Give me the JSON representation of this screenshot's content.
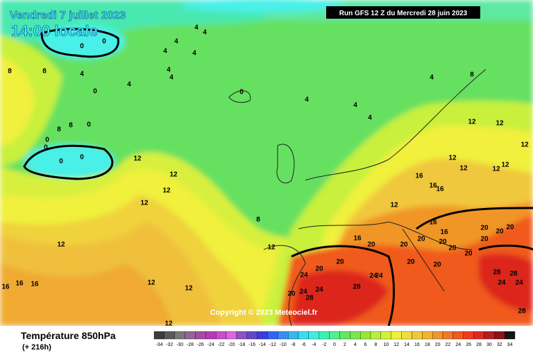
{
  "header": {
    "date": "Vendredi 7 juillet 2023",
    "time": "14:00 locale",
    "run": "Run GFS 12 Z du Mercredi 28 juin 2023"
  },
  "footer": {
    "variable": "Température 850hPa",
    "lead": "(+ 216h)",
    "copyright": "Copyright © 2023 Meteociel.fr"
  },
  "scale": {
    "labels": [
      -34,
      -32,
      -30,
      -28,
      -26,
      -24,
      -22,
      -20,
      -18,
      -16,
      -14,
      -12,
      -10,
      -8,
      -6,
      -4,
      -2,
      0,
      2,
      4,
      6,
      8,
      10,
      12,
      14,
      16,
      18,
      20,
      22,
      24,
      26,
      28,
      30,
      32,
      34
    ],
    "colors": [
      "#3c3c3c",
      "#5a5a5a",
      "#787878",
      "#966496",
      "#a050a0",
      "#b43cb4",
      "#c850c8",
      "#dc64dc",
      "#8c50c8",
      "#6446c8",
      "#3c3cdc",
      "#3264f0",
      "#3c8cf0",
      "#3cb4f0",
      "#3cdcf0",
      "#3cf0dc",
      "#3cf0b4",
      "#50f08c",
      "#64e664",
      "#78e650",
      "#96e63c",
      "#b4f03c",
      "#d2f03c",
      "#f0f03c",
      "#f0dc3c",
      "#f0c83c",
      "#f0b432",
      "#f09628",
      "#f07828",
      "#f05a1e",
      "#f03c1e",
      "#dc281e",
      "#b41e1e",
      "#8c1414",
      "#141414"
    ]
  },
  "contour_labels": [
    0,
    0,
    0,
    0,
    0,
    0,
    0,
    0,
    0,
    4,
    4,
    4,
    4,
    4,
    4,
    4,
    4,
    4,
    4,
    4,
    4,
    4,
    8,
    8,
    8,
    8,
    8,
    8,
    12,
    12,
    12,
    12,
    12,
    12,
    12,
    12,
    12,
    12,
    12,
    12,
    12,
    12,
    12,
    12,
    12,
    16,
    16,
    16,
    16,
    16,
    16,
    16,
    16,
    16,
    20,
    20,
    20,
    20,
    20,
    20,
    20,
    20,
    20,
    20,
    20,
    20,
    20,
    20,
    20,
    24,
    24,
    24,
    24,
    24,
    24,
    24,
    28,
    28,
    28,
    28,
    28
  ]
}
